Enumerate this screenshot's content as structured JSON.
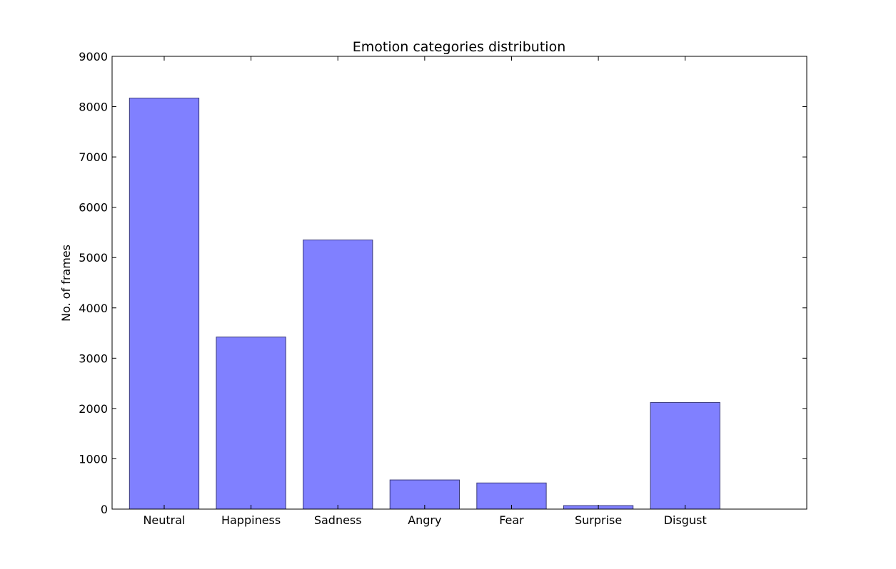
{
  "chart_data": {
    "type": "bar",
    "title": "Emotion categories distribution",
    "xlabel": "",
    "ylabel": "No. of frames",
    "categories": [
      "Neutral",
      "Happiness",
      "Sadness",
      "Angry",
      "Fear",
      "Surprise",
      "Disgust"
    ],
    "values": [
      8170,
      3420,
      5350,
      580,
      520,
      70,
      2120
    ],
    "ylim": [
      0,
      9000
    ],
    "yticks": [
      0,
      1000,
      2000,
      3000,
      4000,
      5000,
      6000,
      7000,
      8000,
      9000
    ],
    "grid": false,
    "bar_color": "#8080ff",
    "bar_edge_color": "#3a3a7a"
  }
}
